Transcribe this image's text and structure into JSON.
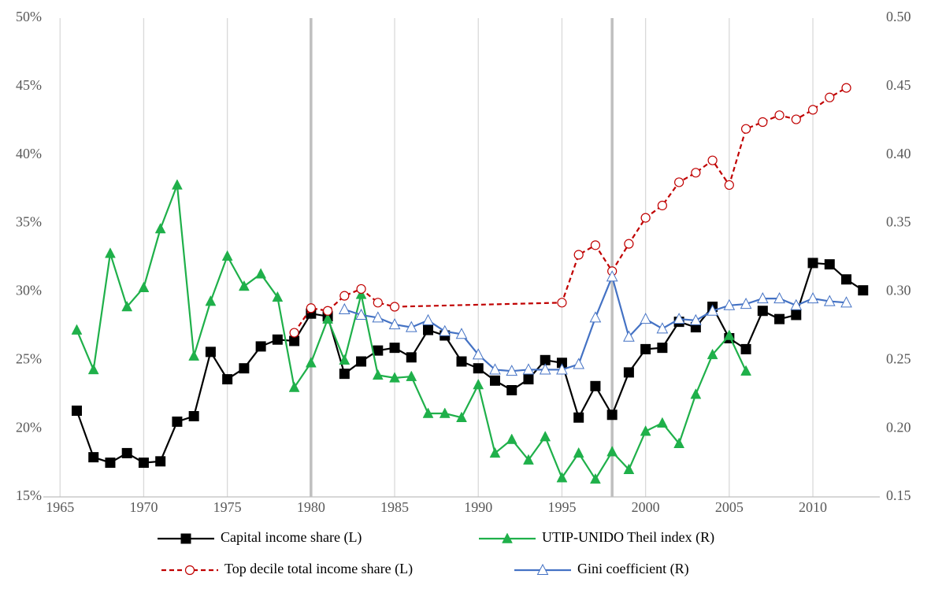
{
  "chart_data": {
    "type": "line",
    "xlim": [
      1964,
      2014
    ],
    "xticks": [
      1965,
      1970,
      1975,
      1980,
      1985,
      1990,
      1995,
      2000,
      2005,
      2010
    ],
    "ylim": [
      15,
      50
    ],
    "yticks": [
      {
        "value": 15,
        "label": "15%"
      },
      {
        "value": 20,
        "label": "20%"
      },
      {
        "value": 25,
        "label": "25%"
      },
      {
        "value": 30,
        "label": "30%"
      },
      {
        "value": 35,
        "label": "35%"
      },
      {
        "value": 40,
        "label": "40%"
      },
      {
        "value": 45,
        "label": "45%"
      },
      {
        "value": 50,
        "label": "50%"
      }
    ],
    "y2lim": [
      0.15,
      0.5
    ],
    "y2ticks": [
      {
        "value": 0.15,
        "label": "0.15"
      },
      {
        "value": 0.2,
        "label": "0.20"
      },
      {
        "value": 0.25,
        "label": "0.25"
      },
      {
        "value": 0.3,
        "label": "0.30"
      },
      {
        "value": 0.35,
        "label": "0.35"
      },
      {
        "value": 0.4,
        "label": "0.40"
      },
      {
        "value": 0.45,
        "label": "0.45"
      },
      {
        "value": 0.5,
        "label": "0.50"
      }
    ],
    "grid": "x",
    "vlines": [
      1980,
      1998
    ],
    "series": [
      {
        "name": "Capital income share (L)",
        "color": "#000000",
        "marker": "square",
        "axis": "y",
        "x": [
          1966,
          1967,
          1968,
          1969,
          1970,
          1971,
          1972,
          1973,
          1974,
          1975,
          1976,
          1977,
          1978,
          1979,
          1980,
          1981,
          1982,
          1983,
          1984,
          1985,
          1986,
          1987,
          1988,
          1989,
          1990,
          1991,
          1992,
          1993,
          1994,
          1995,
          1996,
          1997,
          1998,
          1999,
          2000,
          2001,
          2002,
          2003,
          2004,
          2005,
          2006,
          2007,
          2008,
          2009,
          2010,
          2011,
          2012,
          2013
        ],
        "values": [
          21.3,
          17.9,
          17.5,
          18.2,
          17.5,
          17.6,
          20.5,
          20.9,
          25.6,
          23.6,
          24.4,
          26.0,
          26.5,
          26.4,
          28.4,
          28.2,
          24.0,
          24.9,
          25.7,
          25.9,
          25.2,
          27.2,
          26.8,
          24.9,
          24.4,
          23.5,
          22.8,
          23.6,
          25.0,
          24.8,
          20.8,
          23.1,
          21.0,
          24.1,
          25.8,
          25.9,
          27.8,
          27.4,
          28.9,
          26.6,
          25.8,
          28.6,
          28.0,
          28.3,
          32.1,
          32.0,
          30.9,
          30.1
        ]
      },
      {
        "name": "UTIP-UNIDO Theil index (R)",
        "color": "#1fb04a",
        "marker": "triangle",
        "axis": "y2",
        "x": [
          1966,
          1967,
          1968,
          1969,
          1970,
          1971,
          1972,
          1973,
          1974,
          1975,
          1976,
          1977,
          1978,
          1979,
          1980,
          1981,
          1982,
          1983,
          1984,
          1985,
          1986,
          1987,
          1988,
          1989,
          1990,
          1991,
          1992,
          1993,
          1994,
          1995,
          1996,
          1997,
          1998,
          1999,
          2000,
          2001,
          2002,
          2003,
          2004,
          2005,
          2006
        ],
        "values": [
          0.272,
          0.243,
          0.328,
          0.289,
          0.303,
          0.346,
          0.378,
          0.253,
          0.293,
          0.326,
          0.304,
          0.313,
          0.296,
          0.23,
          0.248,
          0.28,
          0.25,
          0.298,
          0.239,
          0.237,
          0.238,
          0.211,
          0.211,
          0.208,
          0.232,
          0.182,
          0.192,
          0.177,
          0.194,
          0.164,
          0.182,
          0.163,
          0.183,
          0.17,
          0.198,
          0.204,
          0.189,
          0.225,
          0.254,
          0.268,
          0.242
        ]
      },
      {
        "name": "Top decile total income share (L)",
        "color": "#c00000",
        "marker": "open-circle",
        "dashed": true,
        "axis": "y",
        "x": [
          1979,
          1980,
          1981,
          1982,
          1983,
          1984,
          1985,
          1995,
          1996,
          1997,
          1998,
          1999,
          2000,
          2001,
          2002,
          2003,
          2004,
          2005,
          2006,
          2007,
          2008,
          2009,
          2010,
          2011,
          2012
        ],
        "values": [
          27.0,
          28.8,
          28.6,
          29.7,
          30.2,
          29.2,
          28.9,
          29.2,
          32.7,
          33.4,
          31.5,
          33.5,
          35.4,
          36.3,
          38.0,
          38.7,
          39.6,
          37.8,
          41.9,
          42.4,
          42.9,
          42.6,
          43.3,
          44.2,
          44.9
        ]
      },
      {
        "name": "Gini coefficient (R)",
        "color": "#4472c4",
        "marker": "open-triangle",
        "axis": "y2",
        "x": [
          1982,
          1983,
          1984,
          1985,
          1986,
          1987,
          1988,
          1989,
          1990,
          1991,
          1992,
          1993,
          1994,
          1995,
          1996,
          1997,
          1998,
          1999,
          2000,
          2001,
          2002,
          2003,
          2004,
          2005,
          2006,
          2007,
          2008,
          2009,
          2010,
          2011,
          2012
        ],
        "values": [
          0.287,
          0.283,
          0.281,
          0.276,
          0.274,
          0.279,
          0.271,
          0.269,
          0.254,
          0.243,
          0.242,
          0.243,
          0.243,
          0.243,
          0.247,
          0.281,
          0.311,
          0.267,
          0.28,
          0.273,
          0.28,
          0.279,
          0.286,
          0.29,
          0.291,
          0.295,
          0.295,
          0.29,
          0.295,
          0.293,
          0.292
        ]
      }
    ]
  }
}
